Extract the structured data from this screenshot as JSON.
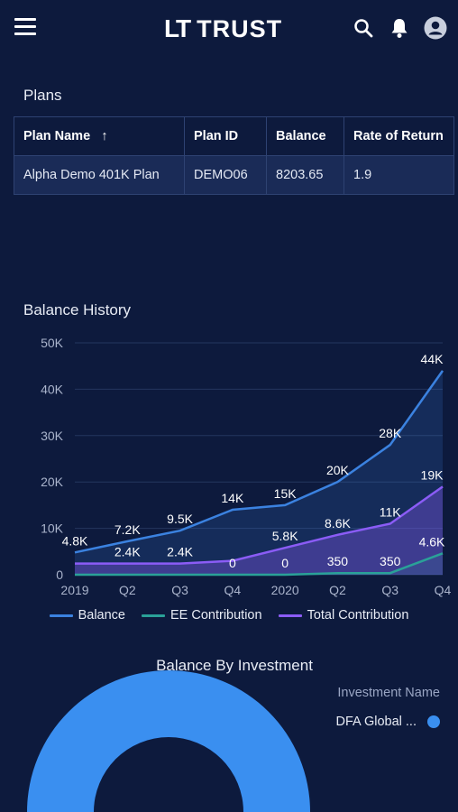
{
  "header": {
    "logo_mark": "LT",
    "logo_text": "TRUST",
    "icons": [
      "menu-icon",
      "search-icon",
      "bell-icon",
      "avatar-icon"
    ]
  },
  "plans": {
    "title": "Plans",
    "columns": [
      "Plan Name",
      "Plan ID",
      "Balance",
      "Rate of Return"
    ],
    "sort_indicator": "↑",
    "rows": [
      [
        "Alpha Demo 401K Plan",
        "DEMO06",
        "8203.65",
        "1.9"
      ]
    ]
  },
  "balance_history": {
    "title": "Balance History"
  },
  "chart_data": {
    "type": "area",
    "categories": [
      "2019",
      "Q2",
      "Q3",
      "Q4",
      "2020",
      "Q2",
      "Q3",
      "Q4"
    ],
    "y_ticks": [
      "0",
      "10K",
      "20K",
      "30K",
      "40K",
      "50K"
    ],
    "ylim": [
      0,
      50000
    ],
    "legend_position": "bottom",
    "series": [
      {
        "name": "Balance",
        "color": "#3b82e0",
        "values": [
          4800,
          7200,
          9500,
          14000,
          15000,
          20000,
          28000,
          44000
        ],
        "labels": [
          "4.8K",
          "7.2K",
          "9.5K",
          "14K",
          "15K",
          "20K",
          "28K",
          "44K"
        ]
      },
      {
        "name": "EE Contribution",
        "color": "#2aa198",
        "values": [
          0,
          0,
          0,
          0,
          0,
          350,
          350,
          4600
        ],
        "labels": [
          "",
          "",
          "",
          "0",
          "0",
          "350",
          "350",
          "4.6K"
        ]
      },
      {
        "name": "Total Contribution",
        "color": "#8b5cf6",
        "values": [
          2400,
          2400,
          2400,
          3000,
          5800,
          8600,
          11000,
          19000
        ],
        "labels": [
          "",
          "2.4K",
          "2.4K",
          "",
          "5.8K",
          "8.6K",
          "11K",
          "19K"
        ]
      }
    ]
  },
  "balance_by_investment": {
    "title": "Balance By Investment",
    "legend_header": "Investment Name",
    "items": [
      {
        "name": "DFA Global ...",
        "color": "#3a8ff0"
      }
    ]
  }
}
